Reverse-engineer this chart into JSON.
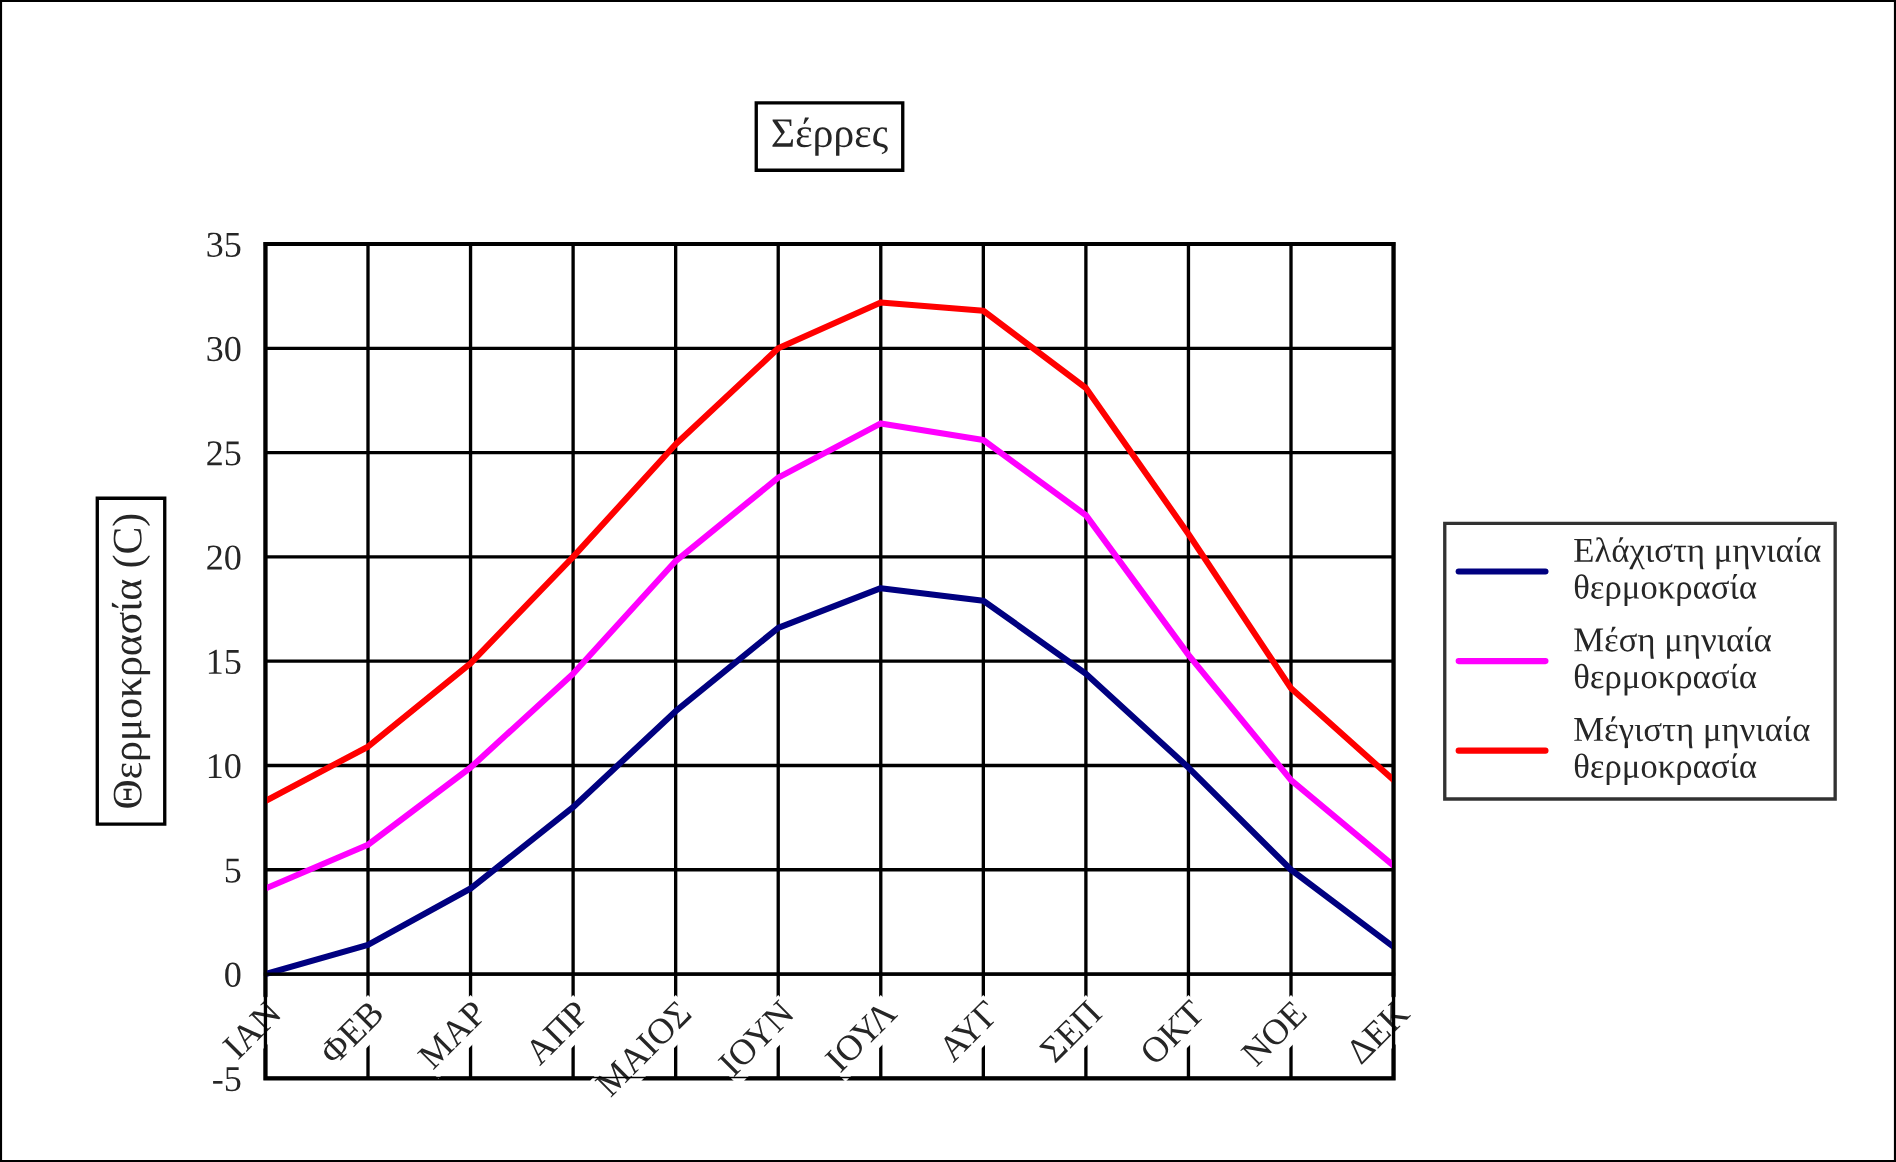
{
  "chart_data": {
    "type": "line",
    "title": "Σέρρες",
    "ylabel": "Θερμοκρασία (C)",
    "categories": [
      "ΙΑΝ",
      "ΦΕΒ",
      "ΜΑΡ",
      "ΑΠΡ",
      "ΜΑΙΟΣ",
      "ΙΟΥΝ",
      "ΙΟΥΛ",
      "ΑΥΓ",
      "ΣΕΠ",
      "ΟΚΤ",
      "ΝΟΕ",
      "ΔΕΚ"
    ],
    "series": [
      {
        "name": "Ελάχιστη μηνιαία θερμοκρασία",
        "color": "#000080",
        "values": [
          0,
          1.4,
          4.1,
          8.0,
          12.6,
          16.6,
          18.5,
          17.9,
          14.4,
          9.9,
          5.0,
          1.3
        ]
      },
      {
        "name": "Μέση μηνιαία θερμοκρασία",
        "color": "#ff00ff",
        "values": [
          4.1,
          6.2,
          9.9,
          14.4,
          19.8,
          23.8,
          26.4,
          25.6,
          22.0,
          15.3,
          9.3,
          5.2
        ]
      },
      {
        "name": "Μέγιστη μηνιαία θερμοκρασία",
        "color": "#ff0000",
        "values": [
          8.3,
          10.9,
          14.9,
          20.0,
          25.4,
          30.0,
          32.2,
          31.8,
          28.1,
          21.1,
          13.7,
          9.3
        ]
      }
    ],
    "ylim": [
      -5,
      35
    ],
    "yticks": [
      -5,
      0,
      5,
      10,
      15,
      20,
      25,
      30,
      35
    ],
    "grid": true,
    "legend": "right",
    "line_style": "solid",
    "marker": "none"
  }
}
